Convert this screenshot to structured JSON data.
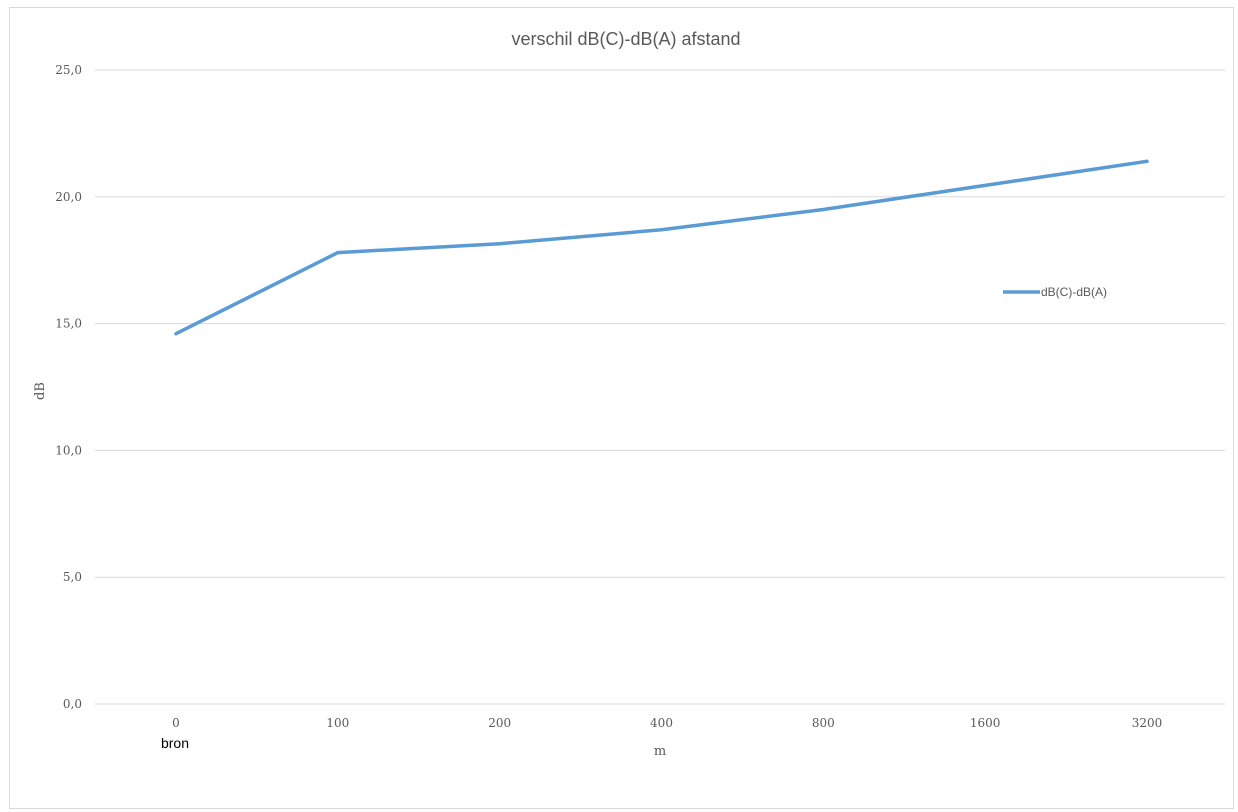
{
  "chart_data": {
    "type": "line",
    "title": "verschil dB(C)-dB(A) afstand",
    "xlabel": "m",
    "ylabel": "dB",
    "categories": [
      "0",
      "100",
      "200",
      "400",
      "800",
      "1600",
      "3200"
    ],
    "series": [
      {
        "name": "dB(C)-dB(A)",
        "values": [
          14.6,
          17.8,
          18.15,
          18.7,
          19.5,
          20.45,
          21.4
        ],
        "color": "#5b9bd5"
      }
    ],
    "ylim": [
      0,
      25
    ],
    "yticks": [
      "0,0",
      "5,0",
      "10,0",
      "15,0",
      "20,0",
      "25,0"
    ],
    "grid": "horizontal",
    "legend_position": "right",
    "annotations": [
      "bron"
    ]
  }
}
